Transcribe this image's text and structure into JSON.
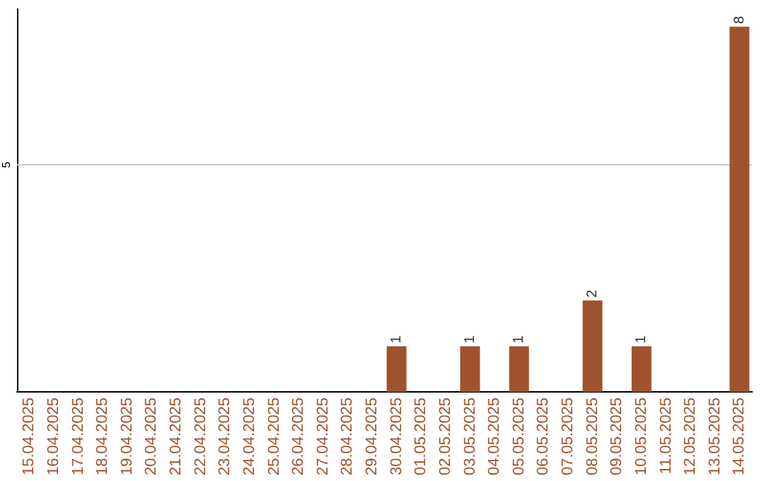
{
  "chart_data": {
    "type": "bar",
    "categories": [
      "15.04.2025",
      "16.04.2025",
      "17.04.2025",
      "18.04.2025",
      "19.04.2025",
      "20.04.2025",
      "21.04.2025",
      "22.04.2025",
      "23.04.2025",
      "24.04.2025",
      "25.04.2025",
      "26.04.2025",
      "27.04.2025",
      "28.04.2025",
      "29.04.2025",
      "30.04.2025",
      "01.05.2025",
      "02.05.2025",
      "03.05.2025",
      "04.05.2025",
      "05.05.2025",
      "06.05.2025",
      "07.05.2025",
      "08.05.2025",
      "09.05.2025",
      "10.05.2025",
      "11.05.2025",
      "12.05.2025",
      "13.05.2025",
      "14.05.2025"
    ],
    "values": [
      null,
      null,
      null,
      null,
      null,
      null,
      null,
      null,
      null,
      null,
      null,
      null,
      null,
      null,
      null,
      1,
      null,
      null,
      1,
      null,
      1,
      null,
      null,
      2,
      null,
      1,
      null,
      null,
      null,
      8
    ],
    "data_labels": true,
    "ylim": [
      0,
      8.4
    ],
    "color": "#a0522d",
    "ref_lines": [
      {
        "axis": "y",
        "value": 5,
        "label": "5",
        "color": "#cccccc"
      }
    ],
    "legend": false
  }
}
